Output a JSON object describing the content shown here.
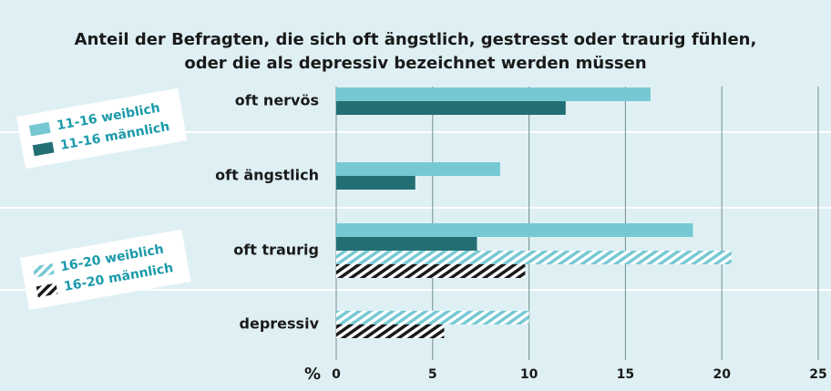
{
  "chart_data": {
    "type": "hbar",
    "title": [
      "Anteil der Befragten, die sich oft ängstlich, gestresst oder traurig fühlen,",
      "oder die als depressiv bezeichnet werden müssen"
    ],
    "categories": [
      "oft nervös",
      "oft ängstlich",
      "oft traurig",
      "depressiv"
    ],
    "series": [
      {
        "name": "11-16 weiblich",
        "color": "#76c9d3",
        "hatched": false,
        "values": [
          16.3,
          8.5,
          18.5,
          null
        ]
      },
      {
        "name": "11-16 männlich",
        "color": "#236e73",
        "hatched": false,
        "values": [
          11.9,
          4.1,
          7.3,
          null
        ]
      },
      {
        "name": "16-20 weiblich",
        "color": "#76c9d3",
        "hatched": true,
        "values": [
          null,
          null,
          20.5,
          10
        ]
      },
      {
        "name": "16-20 männlich",
        "color": "#1a1a1a",
        "hatched": true,
        "values": [
          null,
          null,
          9.8,
          5.6
        ]
      }
    ],
    "xlabel": "%",
    "xlim": [
      0,
      25
    ],
    "xticks": [
      0,
      5,
      10,
      15,
      20,
      25
    ],
    "grid": true
  }
}
